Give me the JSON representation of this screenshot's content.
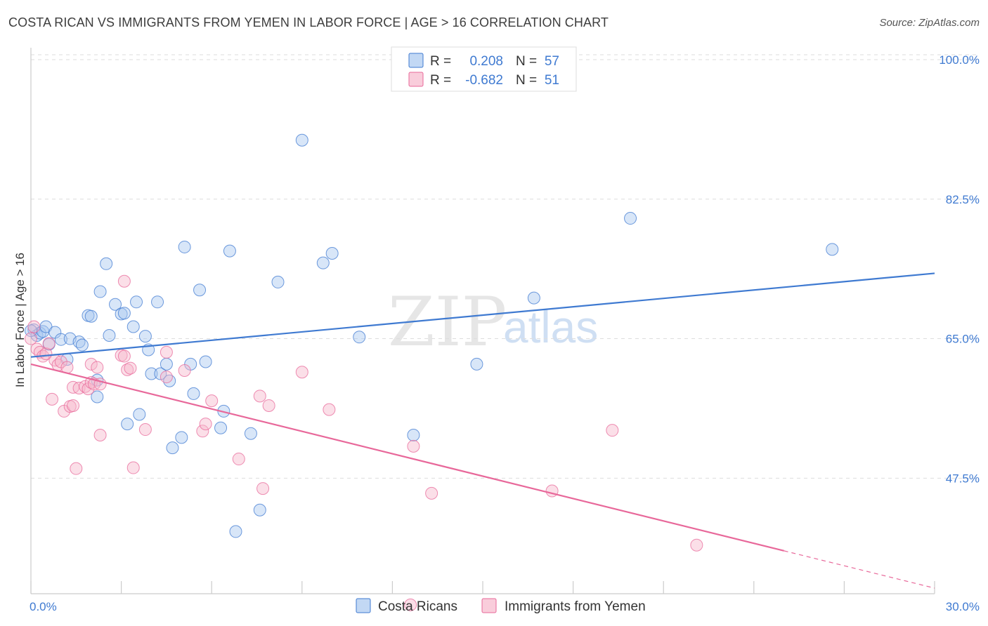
{
  "title": "COSTA RICAN VS IMMIGRANTS FROM YEMEN IN LABOR FORCE | AGE > 16 CORRELATION CHART",
  "source": "Source: ZipAtlas.com",
  "watermark": {
    "zip": "ZIP",
    "atlas": "atlas"
  },
  "colors": {
    "blue": "#3f7ad1",
    "blue_fill": "#a8c8f0",
    "pink": "#e8689a",
    "pink_fill": "#f6b8cc",
    "grid": "#dddddd"
  },
  "legend": {
    "r_label": "R =",
    "n_label": "N =",
    "rows": [
      {
        "r": "0.208",
        "n": "57"
      },
      {
        "r": "-0.682",
        "n": "51"
      }
    ]
  },
  "chart_data": {
    "type": "scatter",
    "title": "COSTA RICAN VS IMMIGRANTS FROM YEMEN IN LABOR FORCE | AGE > 16 CORRELATION CHART",
    "xlabel": "",
    "ylabel": "In Labor Force | Age > 16",
    "xlim": [
      0,
      30
    ],
    "ylim": [
      33,
      101.5
    ],
    "x_tick_labels": [
      "0.0%",
      "30.0%"
    ],
    "y_ticks": [
      47.5,
      65.0,
      82.5,
      100.0
    ],
    "y_tick_labels": [
      "47.5%",
      "65.0%",
      "82.5%",
      "100.0%"
    ],
    "series": [
      {
        "name": "Costa Ricans",
        "color": "#3f7ad1",
        "trend": {
          "x": [
            0,
            30
          ],
          "y": [
            62.7,
            73.2
          ],
          "dashed_from": null
        },
        "points": [
          [
            0.1,
            66.1
          ],
          [
            0.2,
            65.4
          ],
          [
            0.3,
            65.7
          ],
          [
            0.4,
            65.9
          ],
          [
            0.5,
            66.5
          ],
          [
            0.6,
            64.3
          ],
          [
            0.8,
            65.8
          ],
          [
            1.0,
            64.9
          ],
          [
            1.3,
            65.0
          ],
          [
            1.6,
            64.6
          ],
          [
            1.7,
            64.2
          ],
          [
            1.2,
            62.4
          ],
          [
            1.9,
            67.9
          ],
          [
            2.0,
            67.8
          ],
          [
            2.2,
            59.8
          ],
          [
            2.2,
            57.7
          ],
          [
            2.3,
            70.9
          ],
          [
            2.5,
            74.4
          ],
          [
            2.6,
            65.4
          ],
          [
            2.8,
            69.3
          ],
          [
            3.0,
            68.1
          ],
          [
            3.1,
            68.2
          ],
          [
            3.2,
            54.3
          ],
          [
            3.4,
            66.5
          ],
          [
            3.5,
            69.6
          ],
          [
            3.6,
            55.5
          ],
          [
            3.8,
            65.3
          ],
          [
            3.9,
            63.6
          ],
          [
            4.0,
            60.6
          ],
          [
            4.2,
            69.6
          ],
          [
            4.3,
            60.6
          ],
          [
            4.5,
            61.8
          ],
          [
            4.6,
            59.7
          ],
          [
            4.7,
            51.3
          ],
          [
            5.0,
            52.6
          ],
          [
            5.1,
            76.5
          ],
          [
            5.3,
            61.8
          ],
          [
            5.4,
            58.1
          ],
          [
            5.6,
            71.1
          ],
          [
            5.8,
            62.1
          ],
          [
            6.3,
            53.8
          ],
          [
            6.4,
            55.9
          ],
          [
            6.6,
            76.0
          ],
          [
            6.8,
            40.8
          ],
          [
            7.3,
            53.1
          ],
          [
            7.6,
            43.5
          ],
          [
            8.2,
            72.1
          ],
          [
            9.0,
            89.9
          ],
          [
            9.7,
            74.5
          ],
          [
            10.0,
            75.7
          ],
          [
            10.9,
            65.2
          ],
          [
            12.7,
            52.9
          ],
          [
            14.8,
            61.8
          ],
          [
            16.7,
            70.1
          ],
          [
            19.9,
            80.1
          ],
          [
            26.6,
            76.2
          ],
          [
            0.0,
            66.0
          ]
        ]
      },
      {
        "name": "Immigrants from Yemen",
        "color": "#e8689a",
        "trend": {
          "x": [
            0,
            30
          ],
          "y": [
            61.8,
            33.7
          ],
          "dashed_from": 25.0
        },
        "points": [
          [
            0.1,
            66.5
          ],
          [
            0.2,
            63.7
          ],
          [
            0.3,
            63.3
          ],
          [
            0.4,
            62.8
          ],
          [
            0.5,
            63.1
          ],
          [
            0.6,
            64.4
          ],
          [
            0.7,
            57.4
          ],
          [
            0.8,
            62.3
          ],
          [
            0.9,
            61.7
          ],
          [
            1.0,
            62.1
          ],
          [
            1.1,
            55.9
          ],
          [
            1.2,
            61.4
          ],
          [
            1.3,
            56.5
          ],
          [
            1.4,
            56.6
          ],
          [
            1.4,
            58.9
          ],
          [
            1.5,
            48.7
          ],
          [
            1.6,
            58.8
          ],
          [
            1.8,
            59.0
          ],
          [
            1.9,
            58.7
          ],
          [
            2.0,
            59.5
          ],
          [
            2.0,
            61.8
          ],
          [
            2.1,
            59.3
          ],
          [
            2.2,
            61.4
          ],
          [
            2.3,
            59.3
          ],
          [
            2.3,
            52.9
          ],
          [
            3.0,
            62.9
          ],
          [
            3.1,
            62.8
          ],
          [
            3.1,
            72.2
          ],
          [
            3.2,
            61.1
          ],
          [
            3.3,
            61.3
          ],
          [
            3.4,
            48.8
          ],
          [
            3.8,
            53.6
          ],
          [
            4.5,
            63.3
          ],
          [
            4.5,
            60.2
          ],
          [
            5.1,
            61.0
          ],
          [
            5.7,
            53.4
          ],
          [
            5.8,
            54.3
          ],
          [
            6.0,
            57.2
          ],
          [
            6.9,
            49.9
          ],
          [
            7.6,
            57.8
          ],
          [
            7.7,
            46.2
          ],
          [
            7.9,
            56.6
          ],
          [
            9.0,
            60.8
          ],
          [
            9.9,
            56.1
          ],
          [
            12.6,
            31.6
          ],
          [
            12.7,
            51.5
          ],
          [
            13.3,
            45.6
          ],
          [
            17.3,
            45.9
          ],
          [
            19.3,
            53.5
          ],
          [
            22.1,
            39.1
          ],
          [
            0.0,
            65.0
          ]
        ]
      }
    ]
  },
  "bottom_legend": [
    {
      "label": "Costa Ricans"
    },
    {
      "label": "Immigrants from Yemen"
    }
  ]
}
